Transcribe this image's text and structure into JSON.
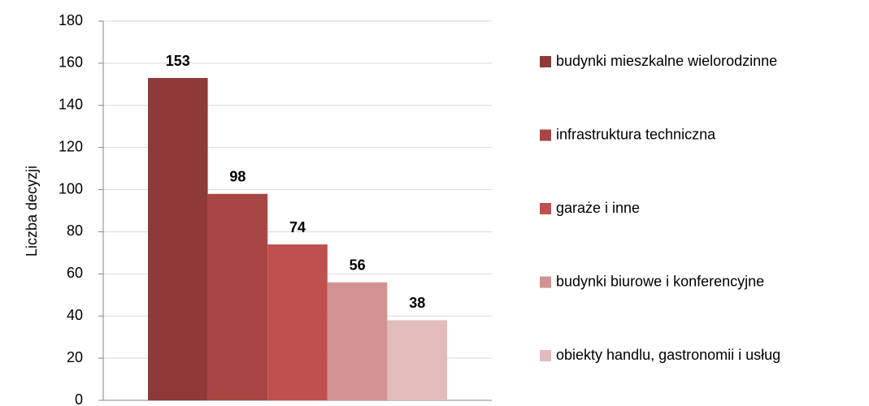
{
  "chart_data": {
    "type": "bar",
    "y_label": "Liczba decyzji",
    "categories": [
      null
    ],
    "series": [
      {
        "name": "budynki mieszkalne wielorodzinne",
        "color": "#8e3a38",
        "values": [
          153
        ]
      },
      {
        "name": "infrastruktura techniczna",
        "color": "#a84644",
        "values": [
          98
        ]
      },
      {
        "name": "garaże i inne",
        "color": "#c0504d",
        "values": [
          74
        ]
      },
      {
        "name": "budynki biurowe i konferencyjne",
        "color": "#d19391",
        "values": [
          56
        ]
      },
      {
        "name": "obiekty handlu, gastronomii i usług",
        "color": "#e2bcbb",
        "values": [
          38
        ]
      }
    ],
    "ylim": [
      0,
      180
    ],
    "yticks": [
      0,
      20,
      40,
      60,
      80,
      100,
      120,
      140,
      160,
      180
    ],
    "grid": true,
    "legend": "right"
  }
}
